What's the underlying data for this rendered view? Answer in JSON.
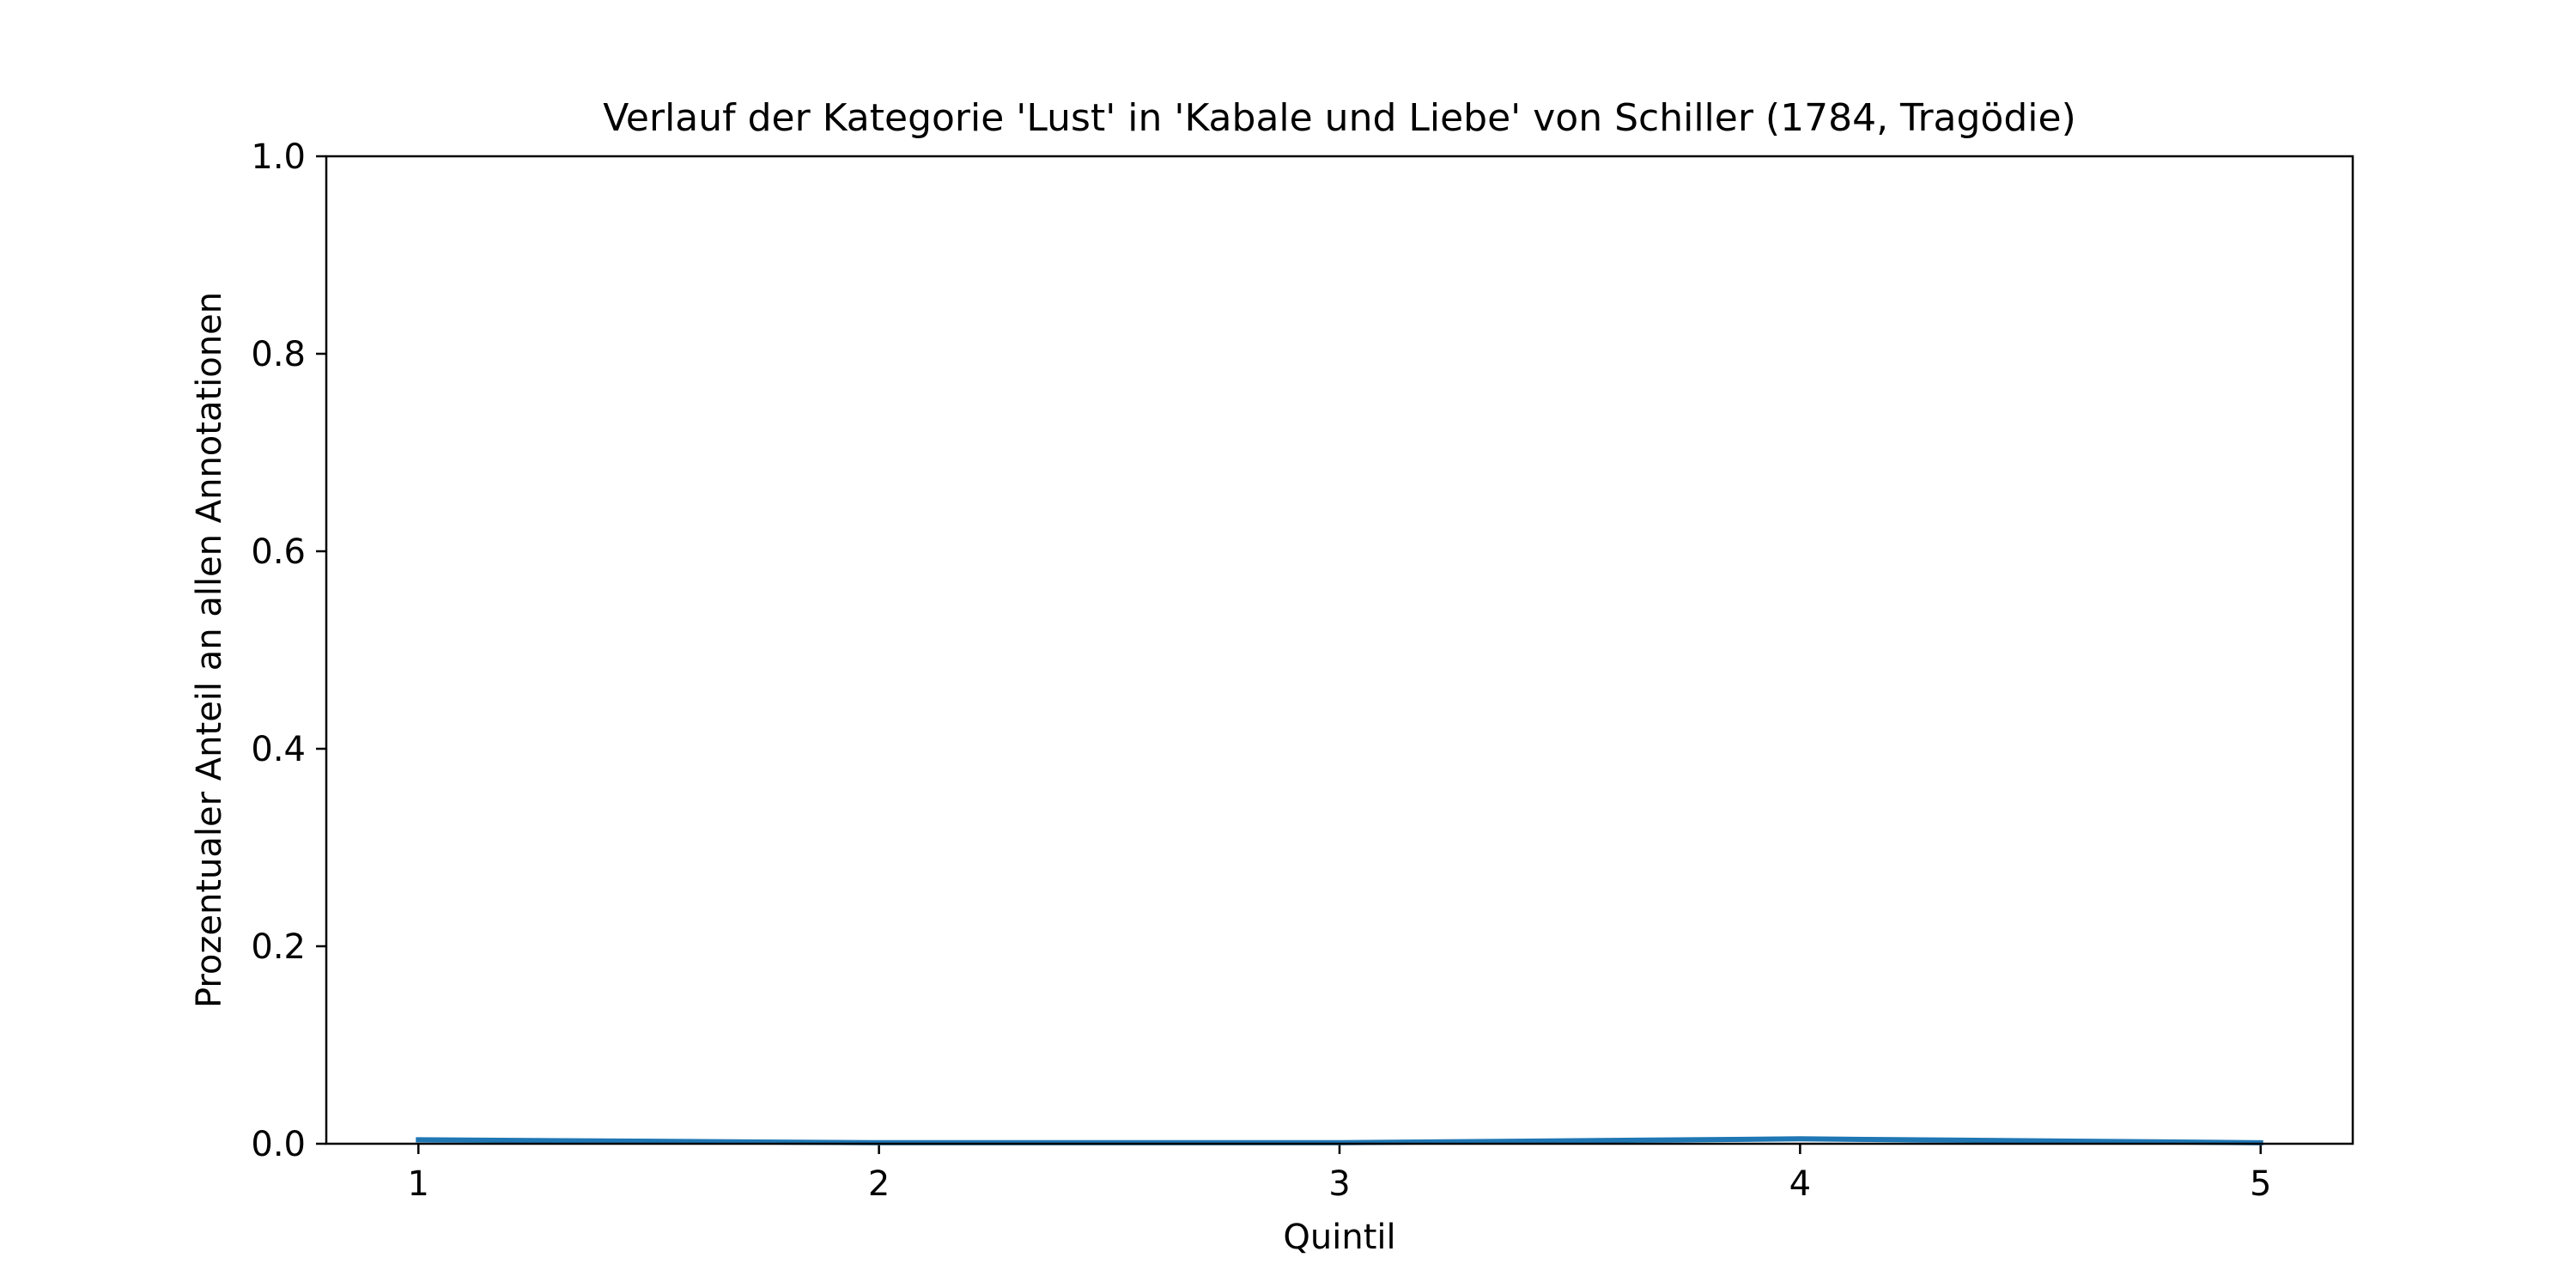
{
  "chart_data": {
    "type": "line",
    "title": "Verlauf der Kategorie 'Lust' in 'Kabale und Liebe' von Schiller (1784, Tragödie)",
    "xlabel": "Quintil",
    "ylabel": "Prozentualer Anteil an allen Annotationen",
    "x": [
      1,
      2,
      3,
      4,
      5
    ],
    "xticks": [
      "1",
      "2",
      "3",
      "4",
      "5"
    ],
    "xlim": [
      0.8,
      5.2
    ],
    "yticks": [
      "0.0",
      "0.2",
      "0.4",
      "0.6",
      "0.8",
      "1.0"
    ],
    "ylim": [
      0.0,
      1.0
    ],
    "series": [
      {
        "values": [
          0.004,
          0.001,
          0.001,
          0.005,
          0.001
        ],
        "color": "#1f77b4"
      }
    ],
    "grid": false,
    "legend": "none"
  }
}
